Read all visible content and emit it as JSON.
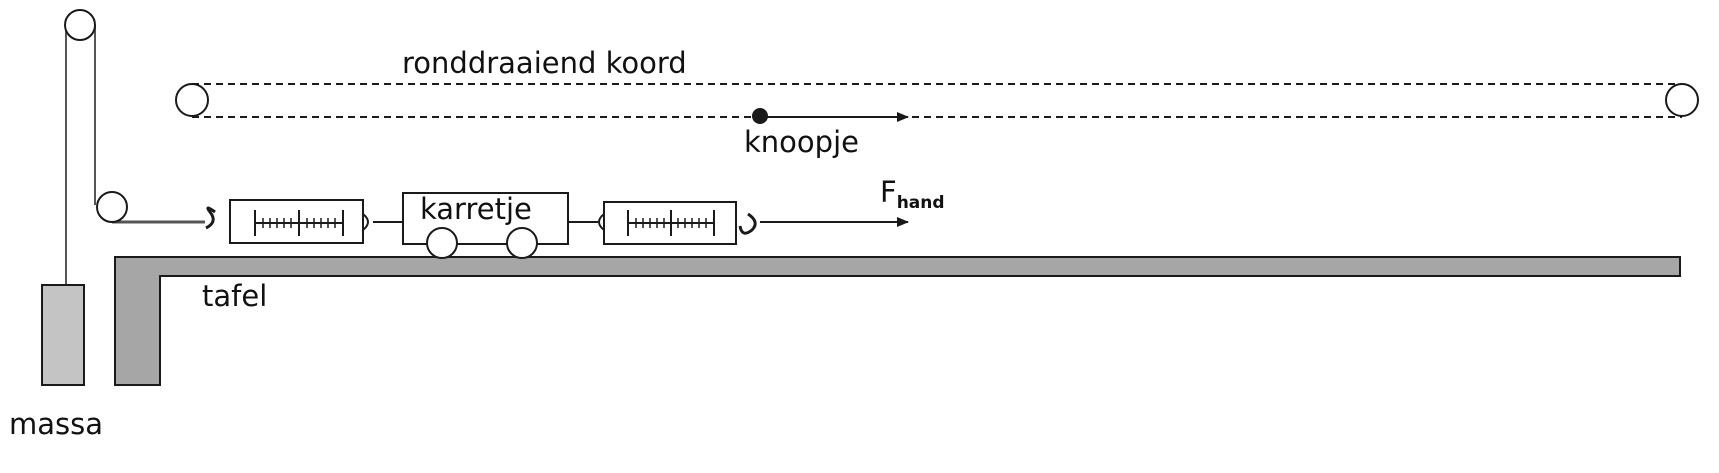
{
  "labels": {
    "cord": "ronddraaiend koord",
    "knot": "knoopje",
    "cart": "karretje",
    "force_main": "F",
    "force_sub": "hand",
    "table": "tafel",
    "mass": "massa"
  },
  "colors": {
    "line": "#1a1a1a",
    "table_fill": "#a6a6a6",
    "mass_fill": "#c4c4c4",
    "rope": "#555555"
  }
}
